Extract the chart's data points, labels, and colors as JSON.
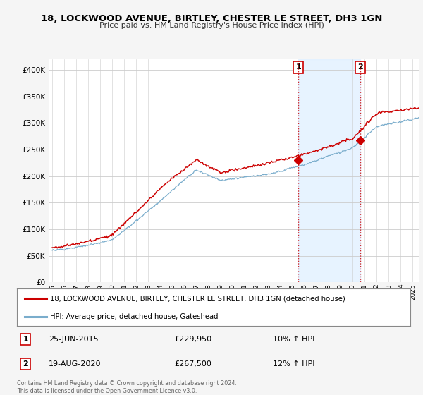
{
  "title": "18, LOCKWOOD AVENUE, BIRTLEY, CHESTER LE STREET, DH3 1GN",
  "subtitle": "Price paid vs. HM Land Registry's House Price Index (HPI)",
  "ytick_values": [
    0,
    50000,
    100000,
    150000,
    200000,
    250000,
    300000,
    350000,
    400000
  ],
  "ylim": [
    0,
    420000
  ],
  "xlim_start": 1994.7,
  "xlim_end": 2025.5,
  "line1_color": "#cc0000",
  "line2_color": "#7aadcc",
  "fill_color": "#ddeeff",
  "marker1_date": 2015.48,
  "marker1_value": 229950,
  "marker2_date": 2020.63,
  "marker2_value": 267500,
  "vline1_date": 2015.48,
  "vline2_date": 2020.63,
  "legend_line1": "18, LOCKWOOD AVENUE, BIRTLEY, CHESTER LE STREET, DH3 1GN (detached house)",
  "legend_line2": "HPI: Average price, detached house, Gateshead",
  "annotation1_num": "1",
  "annotation1_date": "25-JUN-2015",
  "annotation1_price": "£229,950",
  "annotation1_hpi": "10% ↑ HPI",
  "annotation2_num": "2",
  "annotation2_date": "19-AUG-2020",
  "annotation2_price": "£267,500",
  "annotation2_hpi": "12% ↑ HPI",
  "footer": "Contains HM Land Registry data © Crown copyright and database right 2024.\nThis data is licensed under the Open Government Licence v3.0.",
  "fig_bg_color": "#f5f5f5",
  "plot_bg_color": "#ffffff"
}
